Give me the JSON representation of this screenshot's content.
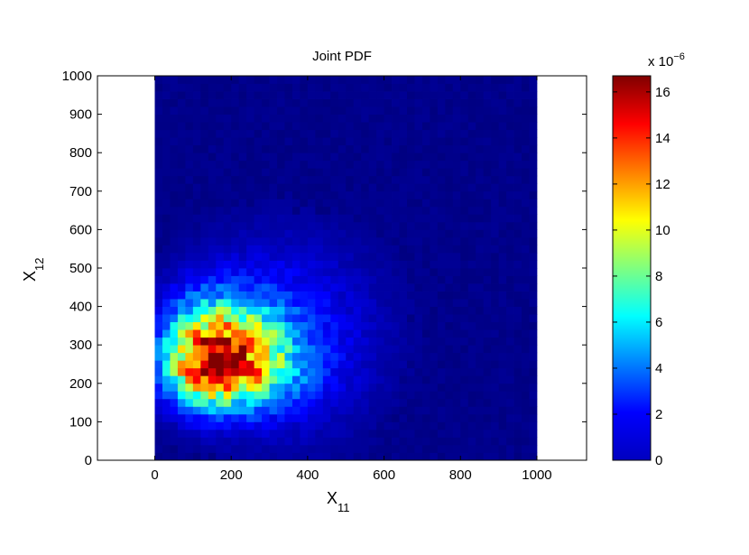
{
  "chart_data": {
    "type": "heatmap",
    "title": "Joint PDF",
    "xlabel": {
      "base": "X",
      "sub": "11"
    },
    "ylabel": {
      "base": "X",
      "sub": "12"
    },
    "xlim": [
      -150,
      1130
    ],
    "ylim": [
      0,
      1000
    ],
    "data_extent": {
      "x": [
        0,
        1000
      ],
      "y": [
        0,
        1000
      ]
    },
    "bin_size": 20,
    "xticks": [
      0,
      200,
      400,
      600,
      800,
      1000
    ],
    "yticks": [
      0,
      100,
      200,
      300,
      400,
      500,
      600,
      700,
      800,
      900,
      1000
    ],
    "colorbar": {
      "colormap": "jet",
      "min": 0,
      "max": 16.7,
      "ticks": [
        0,
        2,
        4,
        6,
        8,
        10,
        12,
        14,
        16
      ],
      "exponent_label": "x 10",
      "exponent": "−6"
    },
    "density_peak": {
      "x": 150,
      "y": 250,
      "value": 16.5
    },
    "colors": {
      "axis": "#000000",
      "background": "#ffffff"
    }
  }
}
